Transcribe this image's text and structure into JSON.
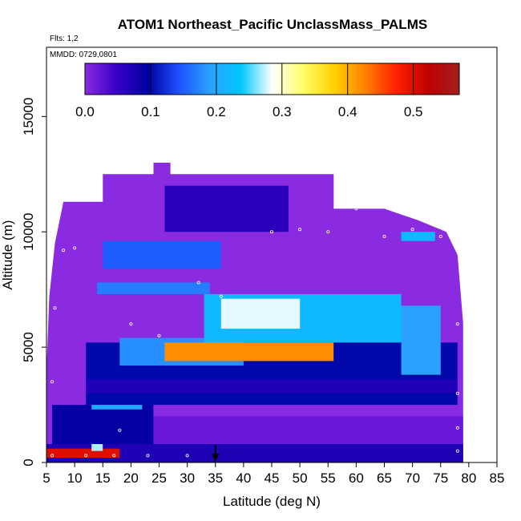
{
  "chart_data": {
    "type": "heatmap",
    "title": "ATOM1 Northeast_Pacific UnclassMass_PALMS",
    "annotations": [
      "Flts: 1,2",
      "MMDD: 0729,0801"
    ],
    "xlabel": "Latitude (deg N)",
    "ylabel": "Altitude (m)",
    "xlim": [
      5,
      85
    ],
    "ylim": [
      0,
      18000
    ],
    "x_ticks": [
      "5",
      "10",
      "15",
      "20",
      "25",
      "30",
      "35",
      "40",
      "45",
      "50",
      "55",
      "60",
      "65",
      "70",
      "75",
      "80",
      "85"
    ],
    "y_ticks": [
      "0",
      "5000",
      "10000",
      "15000"
    ],
    "colorbar": {
      "range": [
        0,
        0.57
      ],
      "ticks": [
        "0.0",
        "0.1",
        "0.2",
        "0.3",
        "0.4",
        "0.5"
      ],
      "colors": [
        "#8a2be2",
        "#3b00c8",
        "#0000a0",
        "#1e50ff",
        "#2aa0ff",
        "#00c8ff",
        "#ffffff",
        "#ffff66",
        "#ffd000",
        "#ff8000",
        "#ff2000",
        "#c00000",
        "#a02020"
      ]
    },
    "marker_latitude": 35,
    "regions": [
      {
        "lat": [
          5,
          79
        ],
        "alt": [
          0,
          800
        ],
        "value": 0.07
      },
      {
        "lat": [
          5,
          18
        ],
        "alt": [
          200,
          600
        ],
        "value": 0.5
      },
      {
        "lat": [
          13,
          15
        ],
        "alt": [
          500,
          1000
        ],
        "value": 0.27
      },
      {
        "lat": [
          6,
          24
        ],
        "alt": [
          800,
          2500
        ],
        "value": 0.09
      },
      {
        "lat": [
          24,
          79
        ],
        "alt": [
          800,
          2000
        ],
        "value": 0.02
      },
      {
        "lat": [
          13,
          22
        ],
        "alt": [
          2300,
          3000
        ],
        "value": 0.2
      },
      {
        "lat": [
          12,
          78
        ],
        "alt": [
          2500,
          5200
        ],
        "value": 0.1
      },
      {
        "lat": [
          12,
          78
        ],
        "alt": [
          3000,
          3600
        ],
        "value": 0.07
      },
      {
        "lat": [
          18,
          40
        ],
        "alt": [
          4200,
          5400
        ],
        "value": 0.18
      },
      {
        "lat": [
          26,
          56
        ],
        "alt": [
          4400,
          5200
        ],
        "value": 0.42
      },
      {
        "lat": [
          33,
          68
        ],
        "alt": [
          5200,
          7300
        ],
        "value": 0.22
      },
      {
        "lat": [
          36,
          50
        ],
        "alt": [
          5800,
          7100
        ],
        "value": 0.28
      },
      {
        "lat": [
          14,
          34
        ],
        "alt": [
          7300,
          7800
        ],
        "value": 0.17
      },
      {
        "lat": [
          15,
          36
        ],
        "alt": [
          8400,
          9600
        ],
        "value": 0.15
      },
      {
        "lat": [
          68,
          75
        ],
        "alt": [
          3800,
          6800
        ],
        "value": 0.19
      },
      {
        "lat": [
          68,
          74
        ],
        "alt": [
          9600,
          10000
        ],
        "value": 0.22
      },
      {
        "lat": [
          26,
          48
        ],
        "alt": [
          10000,
          12000
        ],
        "value": 0.06
      }
    ]
  }
}
